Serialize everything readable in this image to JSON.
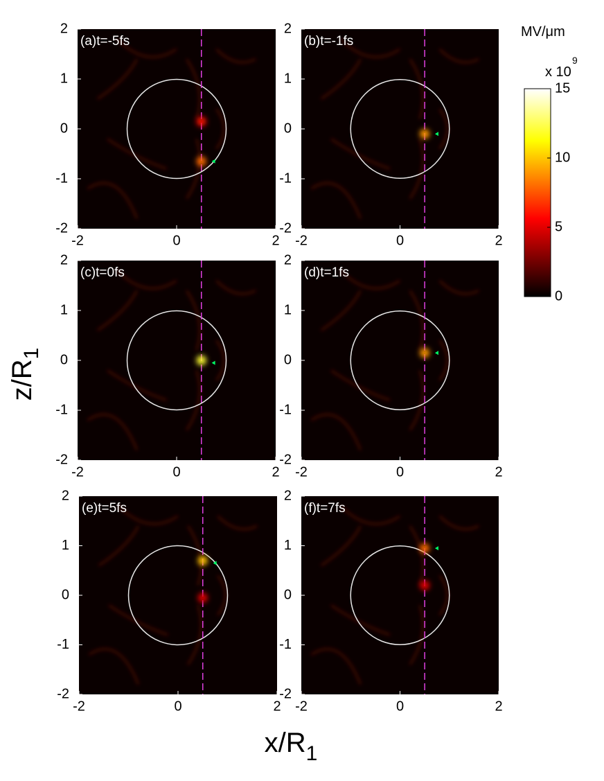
{
  "figure": {
    "xlabel": "x/R",
    "xlabel_sub": "1",
    "ylabel": "z/R",
    "ylabel_sub": "1"
  },
  "colorbar": {
    "title": "MV/μm",
    "multiplier": "x 10",
    "exponent": "9",
    "lim": [
      0,
      15
    ],
    "ticks": [
      0,
      5,
      10,
      15
    ]
  },
  "chart_data": [
    {
      "type": "heatmap",
      "title": "(a)t=-5fs",
      "xlim": [
        -2,
        2
      ],
      "ylim": [
        -2,
        2
      ],
      "xticks": [
        -2,
        0,
        2
      ],
      "yticks": [
        -2,
        -1,
        0,
        1,
        2
      ],
      "circle_radius": 1,
      "probe_x": 0.5,
      "spots": [
        {
          "x": 0.5,
          "z": 0.15,
          "value": 6
        },
        {
          "x": 0.5,
          "z": -0.65,
          "value": 8
        }
      ],
      "marker": {
        "x": 0.75,
        "z": -0.65,
        "color": "#00ff66"
      }
    },
    {
      "type": "heatmap",
      "title": "(b)t=-1fs",
      "xlim": [
        -2,
        2
      ],
      "ylim": [
        -2,
        2
      ],
      "xticks": [
        -2,
        0,
        2
      ],
      "yticks": [
        -2,
        -1,
        0,
        1,
        2
      ],
      "circle_radius": 1,
      "probe_x": 0.5,
      "spots": [
        {
          "x": 0.5,
          "z": -0.1,
          "value": 9
        }
      ],
      "marker": {
        "x": 0.75,
        "z": -0.1,
        "color": "#00ff66"
      }
    },
    {
      "type": "heatmap",
      "title": "(c)t=0fs",
      "xlim": [
        -2,
        2
      ],
      "ylim": [
        -2,
        2
      ],
      "xticks": [
        -2,
        0,
        2
      ],
      "yticks": [
        -2,
        -1,
        0,
        1,
        2
      ],
      "circle_radius": 1,
      "probe_x": 0.5,
      "spots": [
        {
          "x": 0.5,
          "z": 0.0,
          "value": 12
        }
      ],
      "marker": {
        "x": 0.75,
        "z": -0.05,
        "color": "#00ff66"
      }
    },
    {
      "type": "heatmap",
      "title": "(d)t=1fs",
      "xlim": [
        -2,
        2
      ],
      "ylim": [
        -2,
        2
      ],
      "xticks": [
        -2,
        0,
        2
      ],
      "yticks": [
        -2,
        -1,
        0,
        1,
        2
      ],
      "circle_radius": 1,
      "probe_x": 0.5,
      "spots": [
        {
          "x": 0.5,
          "z": 0.15,
          "value": 9
        }
      ],
      "marker": {
        "x": 0.75,
        "z": 0.15,
        "color": "#00ff66"
      }
    },
    {
      "type": "heatmap",
      "title": "(e)t=5fs",
      "xlim": [
        -2,
        2
      ],
      "ylim": [
        -2,
        2
      ],
      "xticks": [
        -2,
        0,
        2
      ],
      "yticks": [
        -2,
        -1,
        0,
        1,
        2
      ],
      "circle_radius": 1,
      "probe_x": 0.5,
      "spots": [
        {
          "x": 0.5,
          "z": 0.7,
          "value": 10
        },
        {
          "x": 0.5,
          "z": -0.05,
          "value": 5
        }
      ],
      "marker": {
        "x": 0.75,
        "z": 0.65,
        "color": "#00ff66"
      }
    },
    {
      "type": "heatmap",
      "title": "(f)t=7fs",
      "xlim": [
        -2,
        2
      ],
      "ylim": [
        -2,
        2
      ],
      "xticks": [
        -2,
        0,
        2
      ],
      "yticks": [
        -2,
        -1,
        0,
        1,
        2
      ],
      "circle_radius": 1,
      "probe_x": 0.5,
      "spots": [
        {
          "x": 0.5,
          "z": 0.95,
          "value": 8
        },
        {
          "x": 0.5,
          "z": 0.2,
          "value": 5
        }
      ],
      "marker": {
        "x": 0.75,
        "z": 0.95,
        "color": "#00ff66"
      }
    }
  ]
}
